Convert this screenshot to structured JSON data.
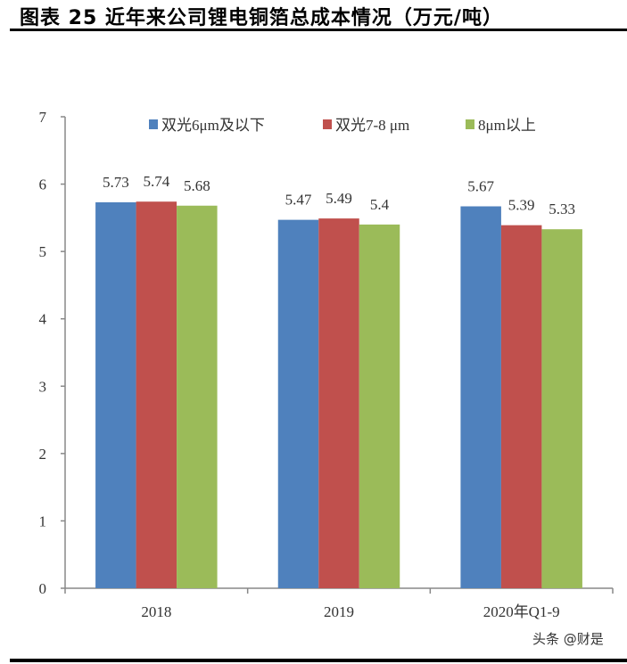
{
  "title": "图表 25 近年来公司锂电铜箔总成本情况（万元/吨）",
  "watermark": "头条 @财是",
  "chart_data": {
    "type": "bar",
    "categories": [
      "2018",
      "2019",
      "2020年Q1-9"
    ],
    "series": [
      {
        "name": "双光6μm及以下",
        "color": "#4F81BD",
        "values": [
          5.73,
          5.47,
          5.67
        ]
      },
      {
        "name": "双光7-8 μm",
        "color": "#C0504D",
        "values": [
          5.74,
          5.49,
          5.39
        ]
      },
      {
        "name": "8μm以上",
        "color": "#9BBB59",
        "values": [
          5.68,
          5.4,
          5.33
        ]
      }
    ],
    "ylim": [
      0,
      7
    ],
    "yticks": [
      0,
      1,
      2,
      3,
      4,
      5,
      6,
      7
    ],
    "grid": false,
    "legend": "top",
    "data_labels": [
      [
        "5.73",
        "5.74",
        "5.68"
      ],
      [
        "5.47",
        "5.49",
        "5.4"
      ],
      [
        "5.67",
        "5.39",
        "5.33"
      ]
    ]
  }
}
